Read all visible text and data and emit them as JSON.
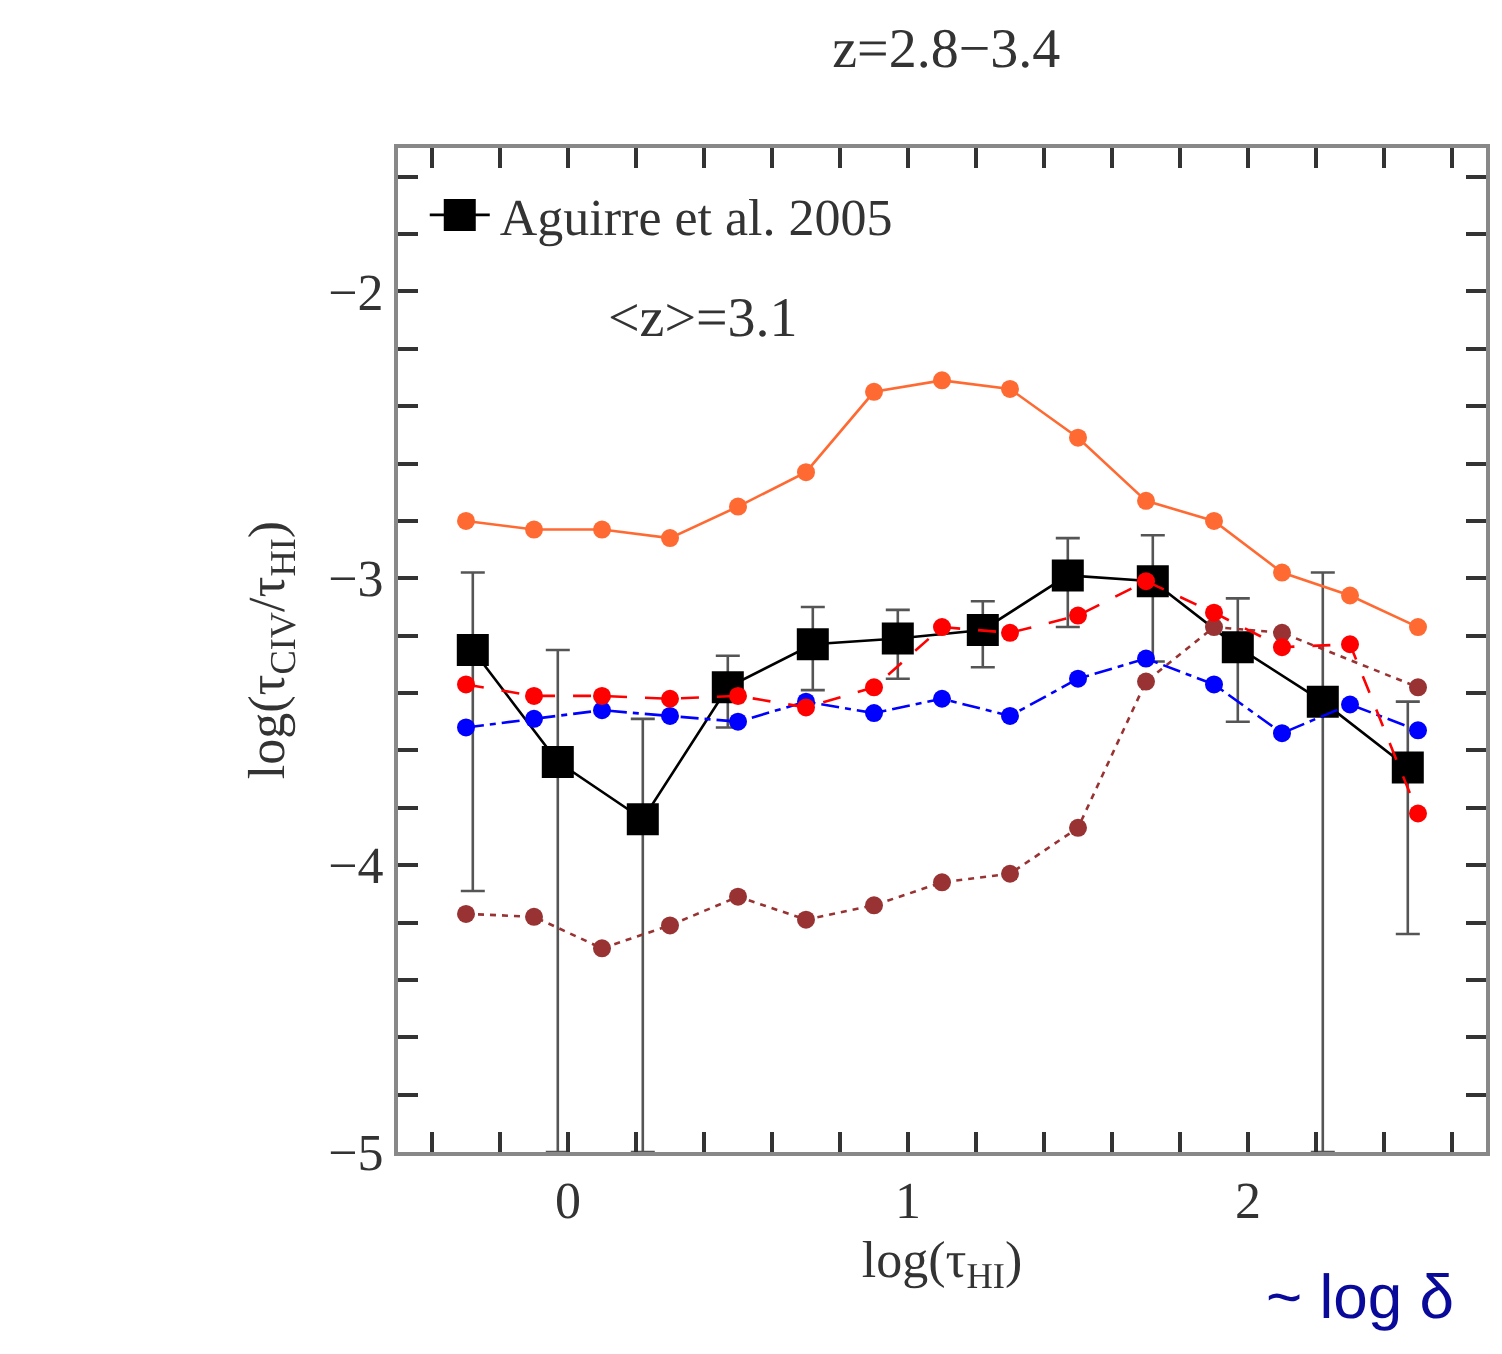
{
  "chart_data": {
    "type": "line",
    "title": "z=2.8−3.4",
    "xlabel": "log(τ$_{HI}$)",
    "ylabel": "log(τ$_{CIV}$/τ$_{HI}$)",
    "annotations": [
      "<z>=3.1",
      "~ log δ"
    ],
    "xlim": [
      -0.5,
      2.7
    ],
    "ylim": [
      -5,
      -1.5
    ],
    "xticks": [
      {
        "value": -0.4,
        "label": null
      },
      {
        "value": -0.2,
        "label": null
      },
      0,
      {
        "value": 0.2,
        "label": null
      },
      {
        "value": 0.4,
        "label": null
      },
      {
        "value": 0.6,
        "label": null
      },
      {
        "value": 0.8,
        "label": null
      },
      1,
      {
        "value": 1.2,
        "label": null
      },
      {
        "value": 1.4,
        "label": null
      },
      {
        "value": 1.6,
        "label": null
      },
      {
        "value": 1.8,
        "label": null
      },
      2,
      {
        "value": 2.2,
        "label": null
      },
      {
        "value": 2.4,
        "label": null
      },
      {
        "value": 2.6,
        "label": null
      }
    ],
    "yticks": [
      -5,
      {
        "value": -4.8,
        "label": null
      },
      {
        "value": -4.6,
        "label": null
      },
      {
        "value": -4.4,
        "label": null
      },
      {
        "value": -4.2,
        "label": null
      },
      -4,
      {
        "value": -3.8,
        "label": null
      },
      {
        "value": -3.6,
        "label": null
      },
      {
        "value": -3.4,
        "label": null
      },
      {
        "value": -3.2,
        "label": null
      },
      -3,
      {
        "value": -2.8,
        "label": null
      },
      {
        "value": -2.6,
        "label": null
      },
      {
        "value": -2.4,
        "label": null
      },
      {
        "value": -2.2,
        "label": null
      },
      -2,
      {
        "value": -1.8,
        "label": null
      },
      {
        "value": -1.6,
        "label": null
      }
    ],
    "legend": "top left",
    "series": [
      {
        "color": "#ff6a33",
        "marker": "circle",
        "line_style": "solid",
        "x": [
          -0.3,
          -0.1,
          0.1,
          0.3,
          0.5,
          0.7,
          0.9,
          1.1,
          1.3,
          1.5,
          1.7,
          1.9,
          2.1,
          2.3,
          2.5
        ],
        "values": [
          -2.8,
          -2.83,
          -2.83,
          -2.86,
          -2.75,
          -2.63,
          -2.35,
          -2.31,
          -2.34,
          -2.51,
          -2.73,
          -2.8,
          -2.98,
          -3.06,
          -3.17
        ]
      },
      {
        "color": "#ff0000",
        "marker": "circle",
        "line_style": "dashed",
        "x": [
          -0.3,
          -0.1,
          0.1,
          0.3,
          0.5,
          0.7,
          0.9,
          1.1,
          1.3,
          1.5,
          1.7,
          1.9,
          2.1,
          2.3,
          2.5
        ],
        "values": [
          -3.37,
          -3.41,
          -3.41,
          -3.42,
          -3.41,
          -3.45,
          -3.38,
          -3.17,
          -3.19,
          -3.13,
          -3.01,
          -3.12,
          -3.24,
          -3.23,
          -3.82
        ]
      },
      {
        "color": "#0000ff",
        "marker": "circle",
        "line_style": "dashdot",
        "x": [
          -0.3,
          -0.1,
          0.1,
          0.3,
          0.5,
          0.7,
          0.9,
          1.1,
          1.3,
          1.5,
          1.7,
          1.9,
          2.1,
          2.3,
          2.5
        ],
        "values": [
          -3.52,
          -3.49,
          -3.46,
          -3.48,
          -3.5,
          -3.43,
          -3.47,
          -3.42,
          -3.48,
          -3.35,
          -3.28,
          -3.37,
          -3.54,
          -3.44,
          -3.53
        ]
      },
      {
        "color": "#993333",
        "marker": "circle",
        "line_style": "dotted",
        "x": [
          -0.3,
          -0.1,
          0.1,
          0.3,
          0.5,
          0.7,
          0.9,
          1.1,
          1.3,
          1.5,
          1.7,
          1.9,
          2.1,
          2.3,
          2.5
        ],
        "values": [
          -4.17,
          -4.18,
          -4.29,
          -4.21,
          -4.11,
          -4.19,
          -4.14,
          -4.06,
          -4.03,
          -3.87,
          -3.36,
          -3.17,
          -3.19,
          null,
          -3.38
        ]
      },
      {
        "name": "Aguirre et al. 2005",
        "color": "#000000",
        "marker": "square",
        "line_style": "solid",
        "x": [
          -0.28,
          -0.03,
          0.22,
          0.47,
          0.72,
          0.97,
          1.22,
          1.47,
          1.72,
          1.97,
          2.22,
          2.47
        ],
        "values": [
          -3.25,
          -3.64,
          -3.84,
          -3.38,
          -3.23,
          -3.21,
          -3.18,
          -2.99,
          -3.01,
          -3.24,
          -3.43,
          -3.66
        ],
        "errors": [
          [
            -4.09,
            -2.98
          ],
          [
            -5,
            -3.25
          ],
          [
            -5,
            -3.49
          ],
          [
            -3.52,
            -3.27
          ],
          [
            -3.39,
            -3.1
          ],
          [
            -3.35,
            -3.11
          ],
          [
            -3.31,
            -3.08
          ],
          [
            -3.17,
            -2.86
          ],
          [
            -3.29,
            -2.85
          ],
          [
            -3.5,
            -3.07
          ],
          [
            -5,
            -2.98
          ],
          [
            -4.24,
            -3.43
          ]
        ]
      }
    ]
  }
}
